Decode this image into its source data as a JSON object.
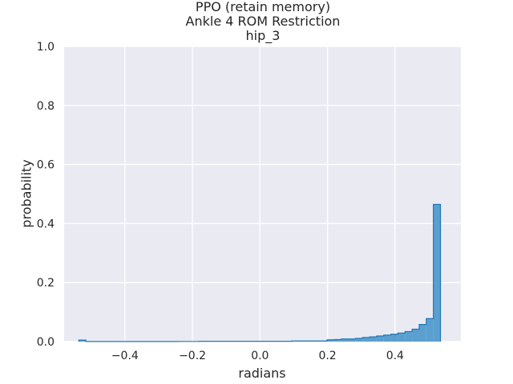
{
  "chart_data": {
    "type": "histogram",
    "title_lines": [
      "PPO (retain memory)",
      "Ankle 4 ROM Restriction",
      "hip_3"
    ],
    "xlabel": "radians",
    "ylabel": "probability",
    "xlim": [
      -0.58,
      0.595
    ],
    "ylim": [
      0.0,
      1.0
    ],
    "xticks": [
      -0.4,
      -0.2,
      0.0,
      0.2,
      0.4
    ],
    "xtick_labels": [
      "−0.4",
      "−0.2",
      "0.0",
      "0.2",
      "0.4"
    ],
    "yticks": [
      0.0,
      0.2,
      0.4,
      0.6,
      0.8,
      1.0
    ],
    "ytick_labels": [
      "0.0",
      "0.2",
      "0.4",
      "0.6",
      "0.8",
      "1.0"
    ],
    "bin_edges": [
      -0.5365,
      -0.5155,
      -0.4945,
      -0.4735,
      -0.4525,
      -0.4315,
      -0.4105,
      -0.3895,
      -0.3685,
      -0.3475,
      -0.3265,
      -0.3055,
      -0.2845,
      -0.2635,
      -0.2425,
      -0.2215,
      -0.2005,
      -0.1795,
      -0.1585,
      -0.1375,
      -0.1165,
      -0.0955,
      -0.0745,
      -0.0535,
      -0.0325,
      -0.0115,
      0.0095,
      0.0305,
      0.0515,
      0.0725,
      0.0935,
      0.1145,
      0.1355,
      0.1565,
      0.1775,
      0.1985,
      0.2195,
      0.2405,
      0.2615,
      0.2825,
      0.3035,
      0.3245,
      0.3455,
      0.3665,
      0.3875,
      0.4085,
      0.4295,
      0.4505,
      0.4715,
      0.4925,
      0.5135,
      0.5345
    ],
    "values": [
      0.005,
      0.0003,
      0.0003,
      0.0003,
      0.0003,
      0.0003,
      0.0003,
      0.0003,
      0.0003,
      0.0003,
      0.0003,
      0.0003,
      0.0003,
      0.0003,
      0.0005,
      0.0005,
      0.0005,
      0.001,
      0.001,
      0.001,
      0.001,
      0.001,
      0.001,
      0.001,
      0.001,
      0.001,
      0.001,
      0.001,
      0.001,
      0.001,
      0.002,
      0.002,
      0.002,
      0.002,
      0.002,
      0.006,
      0.007,
      0.009,
      0.009,
      0.011,
      0.014,
      0.016,
      0.019,
      0.022,
      0.025,
      0.029,
      0.034,
      0.042,
      0.058,
      0.078,
      0.465
    ],
    "colors": {
      "fill": "#5a9fd0",
      "edge": "#1f77b4",
      "background": "#eaeaf2",
      "grid": "#ffffff",
      "text": "#262626"
    }
  }
}
